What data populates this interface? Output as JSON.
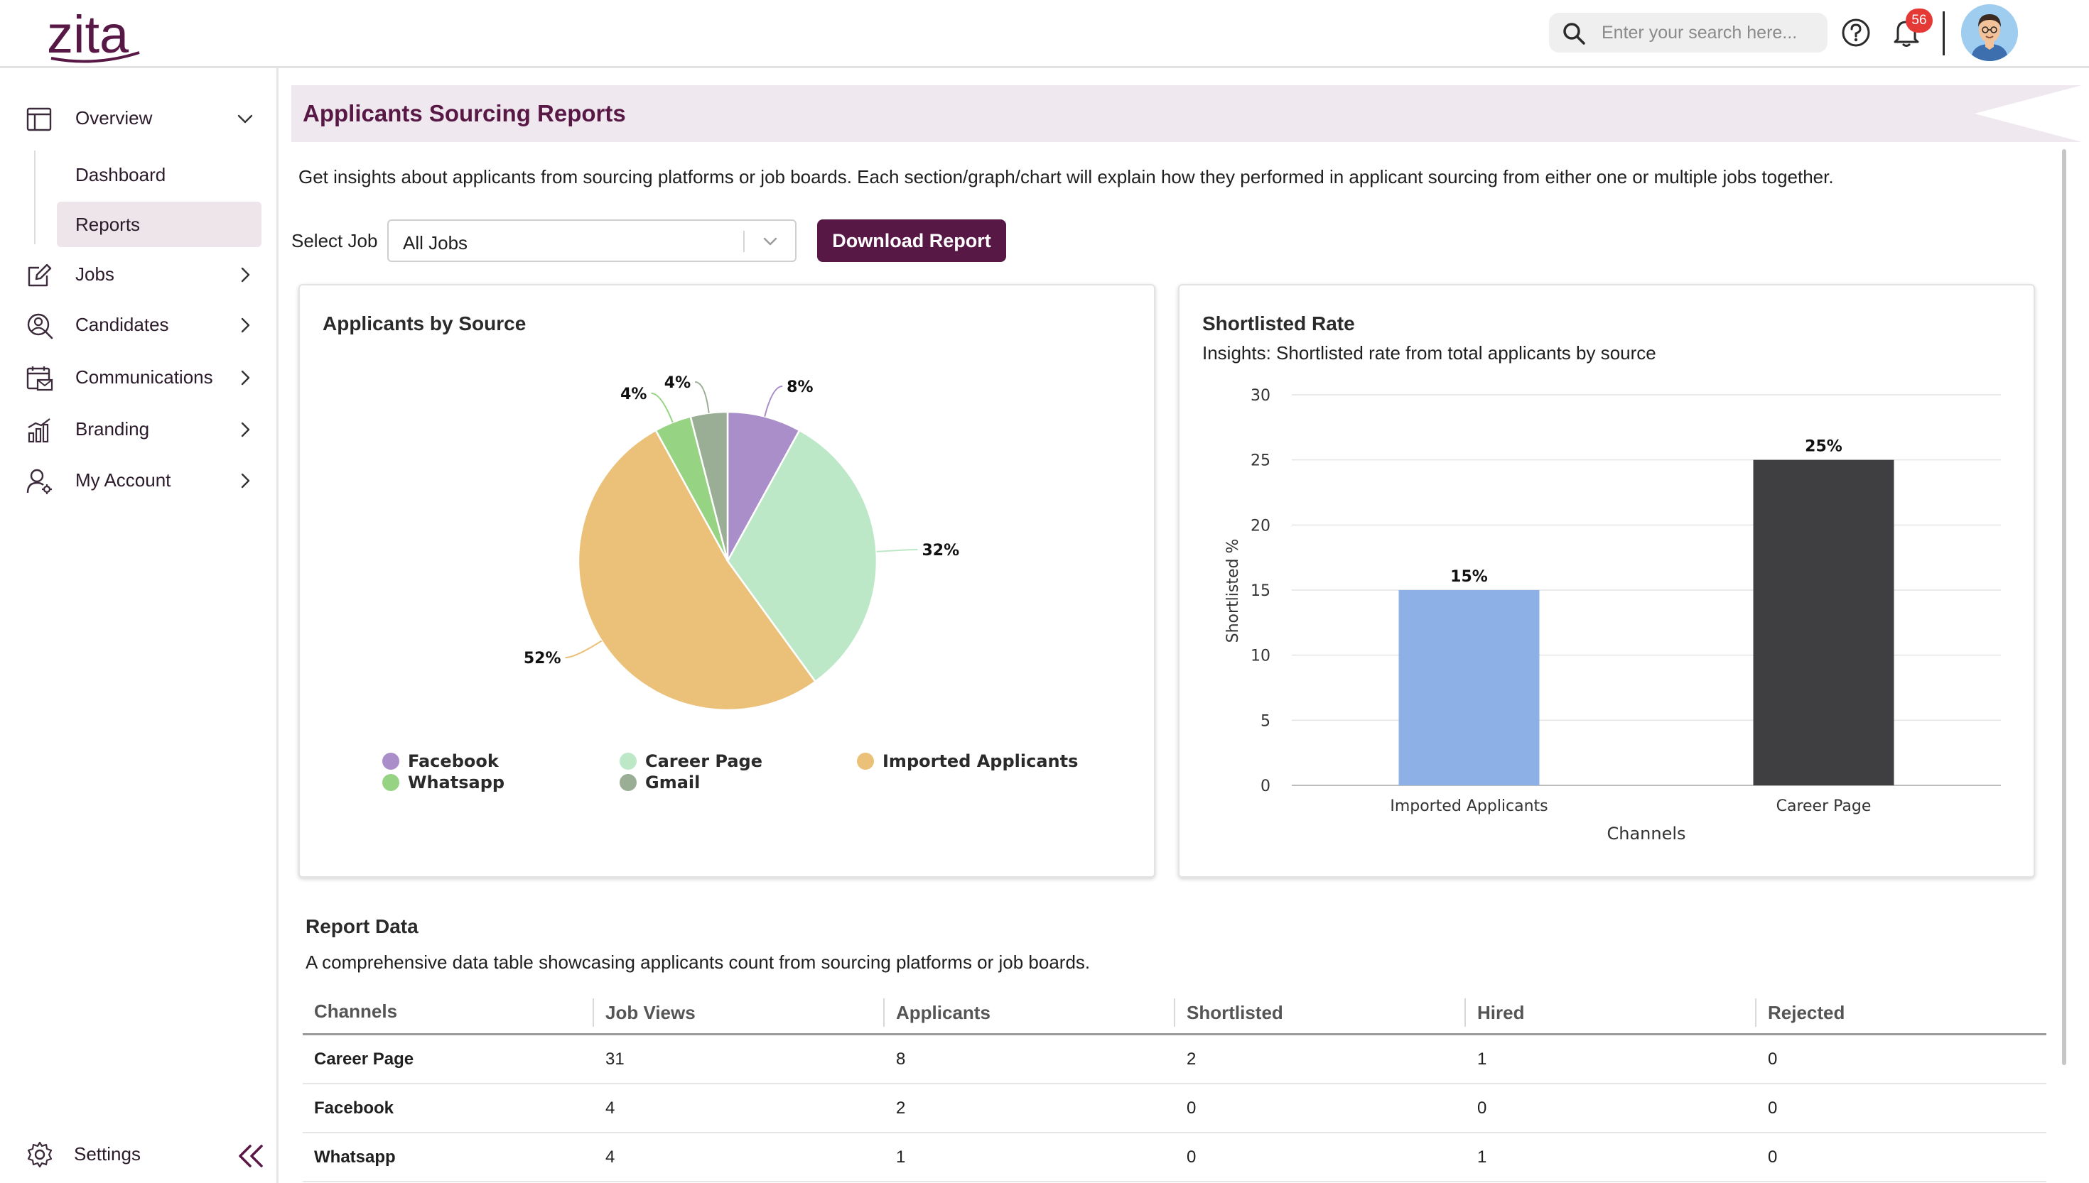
{
  "header": {
    "logo": "zita",
    "search_placeholder": "Enter your search here...",
    "notification_count": "56"
  },
  "sidebar": {
    "overview": "Overview",
    "dashboard": "Dashboard",
    "reports": "Reports",
    "jobs": "Jobs",
    "candidates": "Candidates",
    "communications": "Communications",
    "branding": "Branding",
    "my_account": "My Account",
    "settings": "Settings"
  },
  "page": {
    "title": "Applicants Sourcing Reports",
    "intro": "Get insights about applicants from sourcing platforms or job boards. Each section/graph/chart will explain how they performed in applicant sourcing from either one or multiple jobs together.",
    "select_label": "Select Job",
    "select_value": "All Jobs",
    "download_label": "Download Report"
  },
  "colors": {
    "brand": "#581845",
    "facebook": "#a98ec9",
    "career_page": "#bde8c8",
    "imported": "#ebc078",
    "whatsapp": "#96d484",
    "gmail": "#9aae96",
    "bar_imported": "#8db1e6",
    "bar_career": "#3f3f42"
  },
  "chart_data": [
    {
      "type": "pie",
      "title": "Applicants by Source",
      "slices": [
        {
          "name": "Facebook",
          "value": 8,
          "label": "8%",
          "color": "#a98ec9"
        },
        {
          "name": "Career Page",
          "value": 32,
          "label": "32%",
          "color": "#bde8c8"
        },
        {
          "name": "Imported Applicants",
          "value": 52,
          "label": "52%",
          "color": "#ebc078"
        },
        {
          "name": "Whatsapp",
          "value": 4,
          "label": "4%",
          "color": "#96d484"
        },
        {
          "name": "Gmail",
          "value": 4,
          "label": "4%",
          "color": "#9aae96"
        }
      ],
      "legend": [
        "Facebook",
        "Career Page",
        "Imported Applicants",
        "Whatsapp",
        "Gmail"
      ]
    },
    {
      "type": "bar",
      "title": "Shortlisted Rate",
      "subtitle": "Insights: Shortlisted rate from total applicants by source",
      "categories": [
        "Imported Applicants",
        "Career Page"
      ],
      "values": [
        15,
        25
      ],
      "value_labels": [
        "15%",
        "25%"
      ],
      "colors": [
        "#8db1e6",
        "#3f3f42"
      ],
      "xlabel": "Channels",
      "ylabel": "Shortlisted %",
      "ylim": [
        0,
        30
      ],
      "yticks": [
        "0",
        "5",
        "10",
        "15",
        "20",
        "25",
        "30"
      ]
    }
  ],
  "report": {
    "title": "Report Data",
    "description": "A comprehensive data table showcasing applicants count from sourcing platforms or job boards.",
    "columns": [
      "Channels",
      "Job Views",
      "Applicants",
      "Shortlisted",
      "Hired",
      "Rejected"
    ],
    "rows": [
      [
        "Career Page",
        "31",
        "8",
        "2",
        "1",
        "0"
      ],
      [
        "Facebook",
        "4",
        "2",
        "0",
        "0",
        "0"
      ],
      [
        "Whatsapp",
        "4",
        "1",
        "0",
        "1",
        "0"
      ]
    ]
  }
}
